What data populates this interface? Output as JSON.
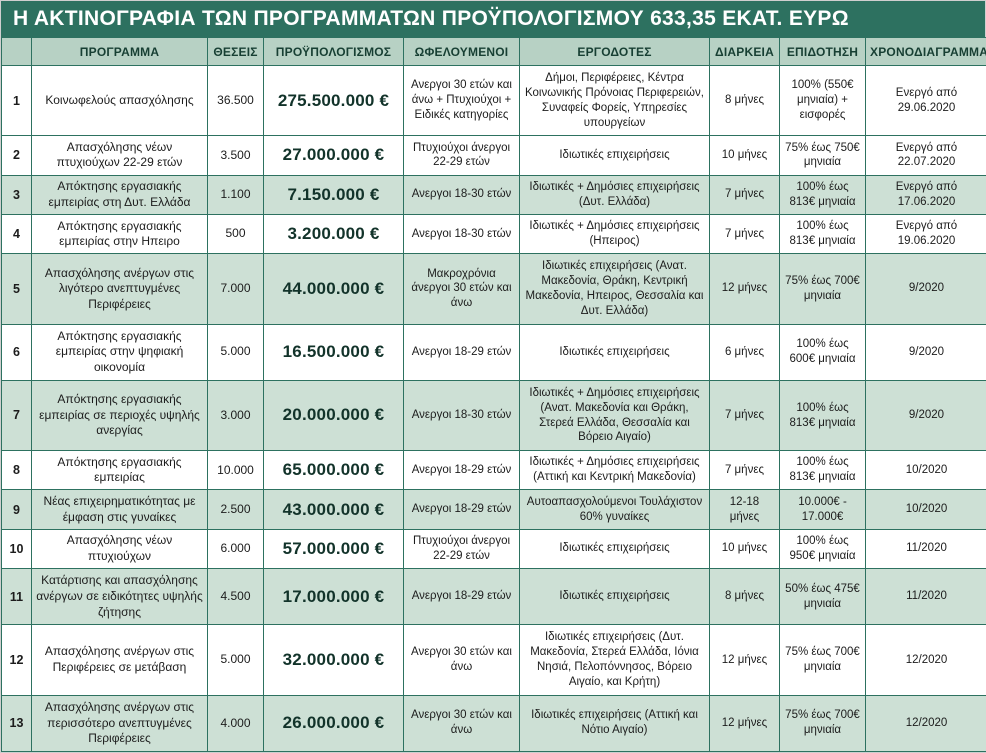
{
  "title": "Η ΑΚΤΙΝΟΓΡΑΦΙΑ ΤΩΝ ΠΡΟΓΡΑΜΜΑΤΩΝ  ΠΡΟΫΠΟΛΟΓΙΣΜΟΥ 633,35 ΕΚΑΤ. ΕΥΡΩ",
  "colors": {
    "title_bg": "#2d7160",
    "title_text": "#ffffff",
    "header_bg": "#b7d1c4",
    "header_text": "#173f33",
    "row_bg": "#ffffff",
    "row_shaded_bg": "#cde0d5",
    "border": "#2d7160",
    "budget_text": "#12332a"
  },
  "chart_data": {
    "type": "table",
    "title": "Η ΑΚΤΙΝΟΓΡΑΦΙΑ ΤΩΝ ΠΡΟΓΡΑΜΜΑΤΩΝ ΠΡΟΫΠΟΛΟΓΙΣΜΟΥ 633,35 ΕΚΑΤ. ΕΥΡΩ",
    "columns": [
      "",
      "ΠΡΟΓΡΑΜΜΑ",
      "ΘΕΣΕΙΣ",
      "ΠΡΟΫΠΟΛΟΓΙΣΜΟΣ",
      "ΩΦΕΛΟΥΜΕΝΟΙ",
      "ΕΡΓΟΔΟΤΕΣ",
      "ΔΙΑΡΚΕΙΑ",
      "ΕΠΙΔΟΤΗΣΗ",
      "ΧΡΟΝΟΔΙΑΓΡΑΜΜΑ"
    ],
    "rows": [
      {
        "num": "1",
        "program": "Κοινωφελούς απασχόλησης",
        "positions": "36.500",
        "budget": "275.500.000 €",
        "beneficiaries": "Ανεργοι 30 ετών και άνω + Πτυχιούχοι + Ειδικές κατηγορίες",
        "employers": "Δήμοι, Περιφέρειες, Κέντρα Κοινωνικής Πρόνοιας Περιφερειών, Συναφείς Φορείς, Υπηρεσίες υπουργείων",
        "duration": "8 μήνες",
        "subsidy": "100% (550€ μηνιαία) + εισφορές",
        "timeline": "Ενεργό από 29.06.2020",
        "shaded": false
      },
      {
        "num": "2",
        "program": "Απασχόλησης νέων πτυχιούχων 22-29 ετών",
        "positions": "3.500",
        "budget": "27.000.000 €",
        "beneficiaries": "Πτυχιούχοι άνεργοι 22-29 ετών",
        "employers": "Ιδιωτικές επιχειρήσεις",
        "duration": "10 μήνες",
        "subsidy": "75% έως 750€ μηνιαία",
        "timeline": "Ενεργό από 22.07.2020",
        "shaded": false
      },
      {
        "num": "3",
        "program": "Απόκτησης εργασιακής εμπειρίας στη Δυτ. Ελλάδα",
        "positions": "1.100",
        "budget": "7.150.000 €",
        "beneficiaries": "Ανεργοι 18-30 ετών",
        "employers": "Ιδιωτικές + Δημόσιες επιχειρήσεις (Δυτ. Ελλάδα)",
        "duration": "7 μήνες",
        "subsidy": "100% έως 813€ μηνιαία",
        "timeline": "Ενεργό από 17.06.2020",
        "shaded": true
      },
      {
        "num": "4",
        "program": "Απόκτησης εργασιακής εμπειρίας στην Ηπειρο",
        "positions": "500",
        "budget": "3.200.000 €",
        "beneficiaries": "Ανεργοι 18-30 ετών",
        "employers": "Ιδιωτικές + Δημόσιες επιχειρήσεις (Ηπειρος)",
        "duration": "7 μήνες",
        "subsidy": "100% έως 813€ μηνιαία",
        "timeline": "Ενεργό από 19.06.2020",
        "shaded": false
      },
      {
        "num": "5",
        "program": "Απασχόλησης ανέργων στις λιγότερο ανεπτυγμένες Περιφέρειες",
        "positions": "7.000",
        "budget": "44.000.000 €",
        "beneficiaries": "Μακροχρόνια άνεργοι 30 ετών και άνω",
        "employers": "Ιδιωτικές επιχειρήσεις (Ανατ. Μακεδονία, Θράκη, Κεντρική Μακεδονία, Ηπειρος, Θεσσαλία και Δυτ. Ελλάδα)",
        "duration": "12 μήνες",
        "subsidy": "75% έως 700€ μηνιαία",
        "timeline": "9/2020",
        "shaded": true
      },
      {
        "num": "6",
        "program": "Απόκτησης εργασιακής εμπειρίας στην ψηφιακή οικονομία",
        "positions": "5.000",
        "budget": "16.500.000 €",
        "beneficiaries": "Ανεργοι 18-29 ετών",
        "employers": "Ιδιωτικές επιχειρήσεις",
        "duration": "6 μήνες",
        "subsidy": "100% έως 600€ μηνιαία",
        "timeline": "9/2020",
        "shaded": false
      },
      {
        "num": "7",
        "program": "Απόκτησης εργασιακής εμπειρίας σε περιοχές υψηλής ανεργίας",
        "positions": "3.000",
        "budget": "20.000.000 €",
        "beneficiaries": "Ανεργοι 18-30 ετών",
        "employers": "Ιδιωτικές + Δημόσιες επιχειρήσεις (Ανατ. Μακεδονία και Θράκη, Στερεά Ελλάδα, Θεσσαλία και Βόρειο Αιγαίο)",
        "duration": "7 μήνες",
        "subsidy": "100% έως 813€ μηνιαία",
        "timeline": "9/2020",
        "shaded": true
      },
      {
        "num": "8",
        "program": "Απόκτησης εργασιακής εμπειρίας",
        "positions": "10.000",
        "budget": "65.000.000 €",
        "beneficiaries": "Ανεργοι 18-29 ετών",
        "employers": "Ιδιωτικές + Δημόσιες επιχειρήσεις (Αττική και Κεντρική Μακεδονία)",
        "duration": "7 μήνες",
        "subsidy": "100% έως 813€ μηνιαία",
        "timeline": "10/2020",
        "shaded": false
      },
      {
        "num": "9",
        "program": "Νέας επιχειρηματικότητας με έμφαση στις γυναίκες",
        "positions": "2.500",
        "budget": "43.000.000 €",
        "beneficiaries": "Ανεργοι 18-29 ετών",
        "employers": "Αυτοαπασχολούμενοι Τουλάχιστον 60% γυναίκες",
        "duration": "12-18 μήνες",
        "subsidy": "10.000€ - 17.000€",
        "timeline": "10/2020",
        "shaded": true
      },
      {
        "num": "10",
        "program": "Απασχόλησης νέων πτυχιούχων",
        "positions": "6.000",
        "budget": "57.000.000 €",
        "beneficiaries": "Πτυχιούχοι άνεργοι 22-29 ετών",
        "employers": "Ιδιωτικές επιχειρήσεις",
        "duration": "10 μήνες",
        "subsidy": "100% έως 950€ μηνιαία",
        "timeline": "11/2020",
        "shaded": false
      },
      {
        "num": "11",
        "program": "Κατάρτισης και απασχόλησης ανέργων σε ειδικότητες υψηλής ζήτησης",
        "positions": "4.500",
        "budget": "17.000.000 €",
        "beneficiaries": "Ανεργοι 18-29 ετών",
        "employers": "Ιδιωτικές επιχειρήσεις",
        "duration": "8 μήνες",
        "subsidy": "50% έως 475€ μηνιαία",
        "timeline": "11/2020",
        "shaded": true
      },
      {
        "num": "12",
        "program": "Απασχόλησης ανέργων στις Περιφέρειες σε μετάβαση",
        "positions": "5.000",
        "budget": "32.000.000 €",
        "beneficiaries": "Ανεργοι 30 ετών και άνω",
        "employers": "Ιδιωτικές επιχειρήσεις (Δυτ. Μακεδονία, Στερεά Ελλάδα, Ιόνια Νησιά, Πελοπόννησος, Βόρειο Αιγαίο, και Κρήτη)",
        "duration": "12 μήνες",
        "subsidy": "75% έως 700€ μηνιαία",
        "timeline": "12/2020",
        "shaded": false
      },
      {
        "num": "13",
        "program": "Απασχόλησης ανέργων στις περισσότερο ανεπτυγμένες Περιφέρειες",
        "positions": "4.000",
        "budget": "26.000.000 €",
        "beneficiaries": "Ανεργοι 30 ετών και άνω",
        "employers": "Ιδιωτικές επιχειρήσεις (Αττική και Νότιο Αιγαίο)",
        "duration": "12 μήνες",
        "subsidy": "75% έως 700€ μηνιαία",
        "timeline": "12/2020",
        "shaded": true
      }
    ]
  }
}
